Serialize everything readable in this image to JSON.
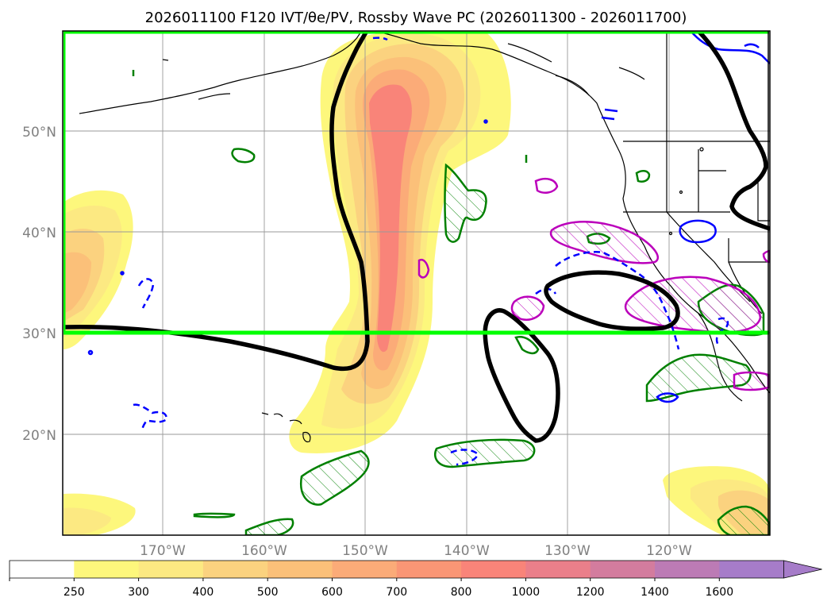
{
  "title": "2026011100 F120 IVT/θe/PV, Rossby Wave PC (2026011300 - 2026011700)",
  "lat_labels": [
    "50°N",
    "40°N",
    "30°N",
    "20°N"
  ],
  "lon_labels": [
    "170°W",
    "160°W",
    "150°W",
    "140°W",
    "130°W",
    "120°W"
  ],
  "colorbar": {
    "ticks": [
      "250",
      "300",
      "400",
      "500",
      "600",
      "700",
      "800",
      "1000",
      "1200",
      "1400",
      "1600"
    ],
    "colors": [
      "#ffffff",
      "#fdf77c",
      "#fce982",
      "#fbd27f",
      "#fbc079",
      "#fbab78",
      "#fa9675",
      "#f98479",
      "#ea7f8a",
      "#d37c9e",
      "#bc7bb5",
      "#a67cc9"
    ]
  },
  "colors": {
    "highlight_box": "#00ff00",
    "pc_contour": "#000000",
    "pv_positive": "#0000ff",
    "theta_e": "#008000",
    "pv_hatched": "#bb00bb"
  }
}
